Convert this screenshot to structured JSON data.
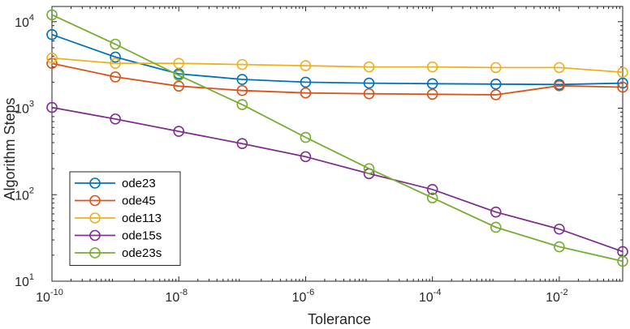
{
  "chart_data": {
    "type": "line",
    "title": "",
    "xlabel": "Tolerance",
    "ylabel": "Algorithm Steps",
    "xscale": "log",
    "yscale": "log",
    "xlim": [
      1e-10,
      0.1
    ],
    "ylim": [
      10,
      15000
    ],
    "grid": false,
    "legend_position": "bottom-left",
    "x_ticks": [
      {
        "base": "10",
        "exp": "-10",
        "value": 1e-10
      },
      {
        "base": "10",
        "exp": "-8",
        "value": 1e-08
      },
      {
        "base": "10",
        "exp": "-6",
        "value": 1e-06
      },
      {
        "base": "10",
        "exp": "-4",
        "value": 0.0001
      },
      {
        "base": "10",
        "exp": "-2",
        "value": 0.01
      }
    ],
    "y_ticks": [
      {
        "base": "10",
        "exp": "1",
        "value": 10
      },
      {
        "base": "10",
        "exp": "2",
        "value": 100
      },
      {
        "base": "10",
        "exp": "3",
        "value": 1000
      },
      {
        "base": "10",
        "exp": "4",
        "value": 10000
      }
    ],
    "x": [
      1e-10,
      1e-09,
      1e-08,
      1e-07,
      1e-06,
      1e-05,
      0.0001,
      0.001,
      0.01,
      0.1
    ],
    "series": [
      {
        "name": "ode23",
        "color": "#0072BD",
        "values": [
          7100,
          3900,
          2500,
          2150,
          2000,
          1950,
          1920,
          1900,
          1880,
          1950
        ]
      },
      {
        "name": "ode45",
        "color": "#D95319",
        "values": [
          3300,
          2300,
          1800,
          1600,
          1500,
          1470,
          1450,
          1430,
          1820,
          1750
        ]
      },
      {
        "name": "ode113",
        "color": "#EDB120",
        "values": [
          3800,
          3300,
          3300,
          3200,
          3100,
          3000,
          3000,
          2950,
          2950,
          2600
        ]
      },
      {
        "name": "ode15s",
        "color": "#7E2F8E",
        "values": [
          1020,
          750,
          540,
          390,
          275,
          175,
          115,
          63,
          40,
          22
        ]
      },
      {
        "name": "ode23s",
        "color": "#77AC30",
        "values": [
          12000,
          5500,
          2400,
          1100,
          460,
          200,
          92,
          42,
          25,
          17
        ]
      }
    ]
  }
}
